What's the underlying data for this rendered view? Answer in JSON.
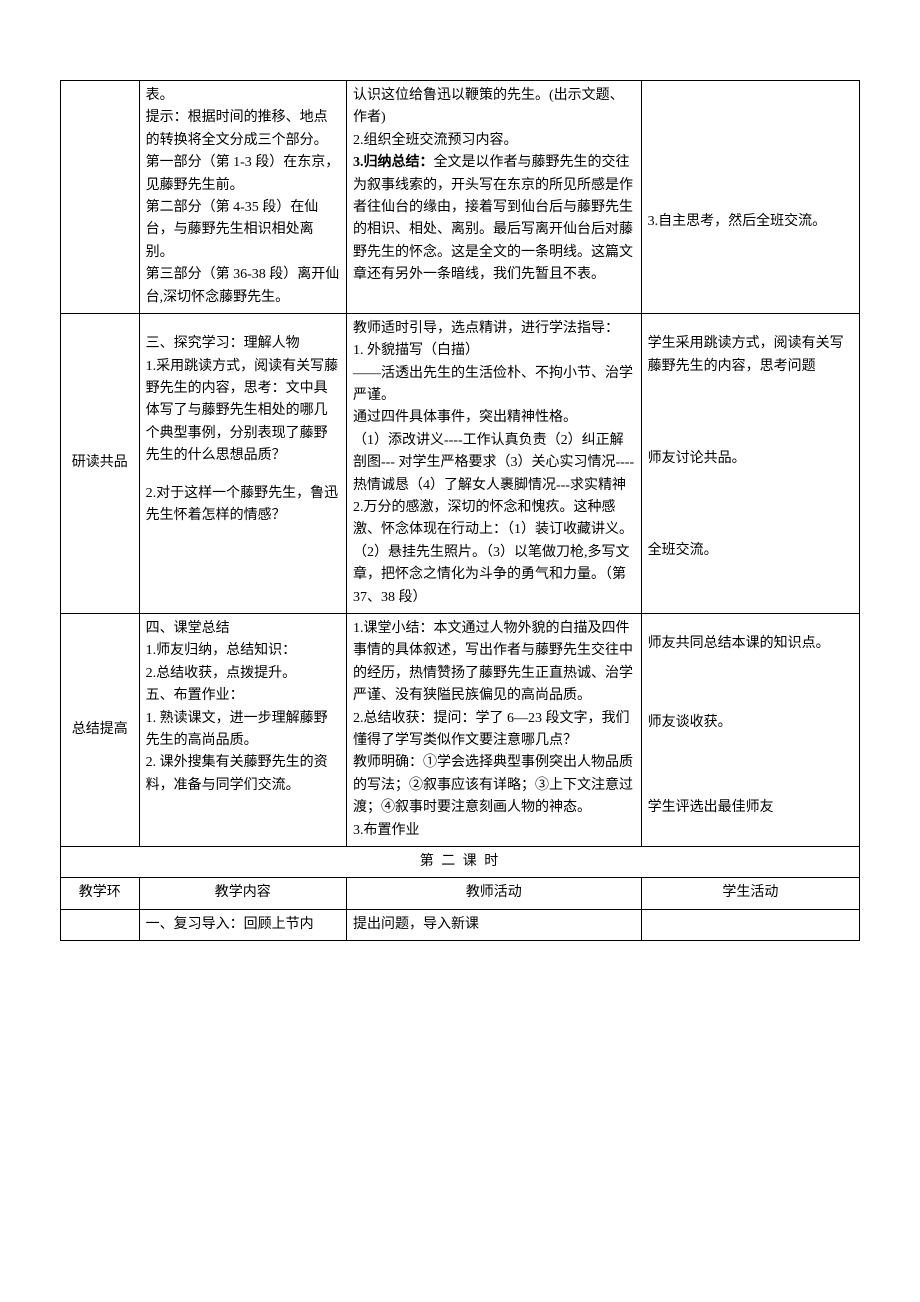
{
  "row1": {
    "col2": "表。\n提示：根据时间的推移、地点的转换将全文分成三个部分。\n第一部分（第 1-3 段）在东京，见藤野先生前。\n第二部分（第 4-35 段）在仙台，与藤野先生相识相处离别。\n第三部分（第 36-38 段）离开仙台,深切怀念藤野先生。",
    "col3_a": "认识这位给鲁迅以鞭策的先生。(出示文题、作者)\n2.组织全班交流预习内容。",
    "col3_b_label": "3.归纳总结：",
    "col3_b": "全文是以作者与藤野先生的交往为叙事线索的，开头写在东京的所见所感是作者往仙台的缘由，接着写到仙台后与藤野先生的相识、相处、离别。最后写离开仙台后对藤野先生的怀念。这是全文的一条明线。这篇文章还有另外一条暗线，我们先暂且不表。",
    "col4": "3.自主思考，然后全班交流。"
  },
  "row2": {
    "col1": "研读共品",
    "col2_a": "三、探究学习：理解人物\n1.采用跳读方式，阅读有关写藤野先生的内容，思考：文中具体写了与藤野先生相处的哪几个典型事例，分别表现了藤野先生的什么思想品质？",
    "col2_b": "2.对于这样一个藤野先生，鲁迅先生怀着怎样的情感？",
    "col3": "教师适时引导，选点精讲，进行学法指导：\n1.  外貌描写（白描）\n——活透出先生的生活俭朴、不拘小节、治学严谨。\n通过四件具体事件，突出精神性格。\n（1）添改讲义----工作认真负责（2）纠正解剖图---  对学生严格要求（3）关心实习情况----热情诚恳（4）了解女人裹脚情况---求实精神\n2.万分的感激，深切的怀念和愧疚。这种感激、怀念体现在行动上：（1）装订收藏讲义。（2）悬挂先生照片。（3）以笔做刀枪,多写文章，把怀念之情化为斗争的勇气和力量。（第 37、38 段）",
    "col4_a": "学生采用跳读方式，阅读有关写藤野先生的内容，思考问题",
    "col4_b": "师友讨论共品。",
    "col4_c": "全班交流。"
  },
  "row3": {
    "col1": "总结提高",
    "col2": "四、课堂总结\n1.师友归纳，总结知识：\n2.总结收获，点拨提升。\n五、布置作业：\n1.  熟读课文，进一步理解藤野先生的高尚品质。\n2.  课外搜集有关藤野先生的资料，准备与同学们交流。",
    "col3": "1.课堂小结：本文通过人物外貌的白描及四件事情的具体叙述，写出作者与藤野先生交往中的经历，热情赞扬了藤野先生正直热诚、治学严谨、没有狭隘民族偏见的高尚品质。\n2.总结收获：提问：学了 6—23 段文字，我们懂得了学写类似作文要注意哪几点？\n教师明确：①学会选择典型事例突出人物品质的写法；②叙事应该有详略；③上下文注意过渡；④叙事时要注意刻画人物的神态。\n3.布置作业",
    "col4_a": "师友共同总结本课的知识点。",
    "col4_b": "师友谈收获。",
    "col4_c": "学生评选出最佳师友"
  },
  "section2_title": "第  二  课  时",
  "header2": {
    "c1": "教学环",
    "c2": "教学内容",
    "c3": "教师活动",
    "c4": "学生活动"
  },
  "row4": {
    "col2": "一、复习导入：回顾上节内",
    "col3": "提出问题，导入新课"
  }
}
